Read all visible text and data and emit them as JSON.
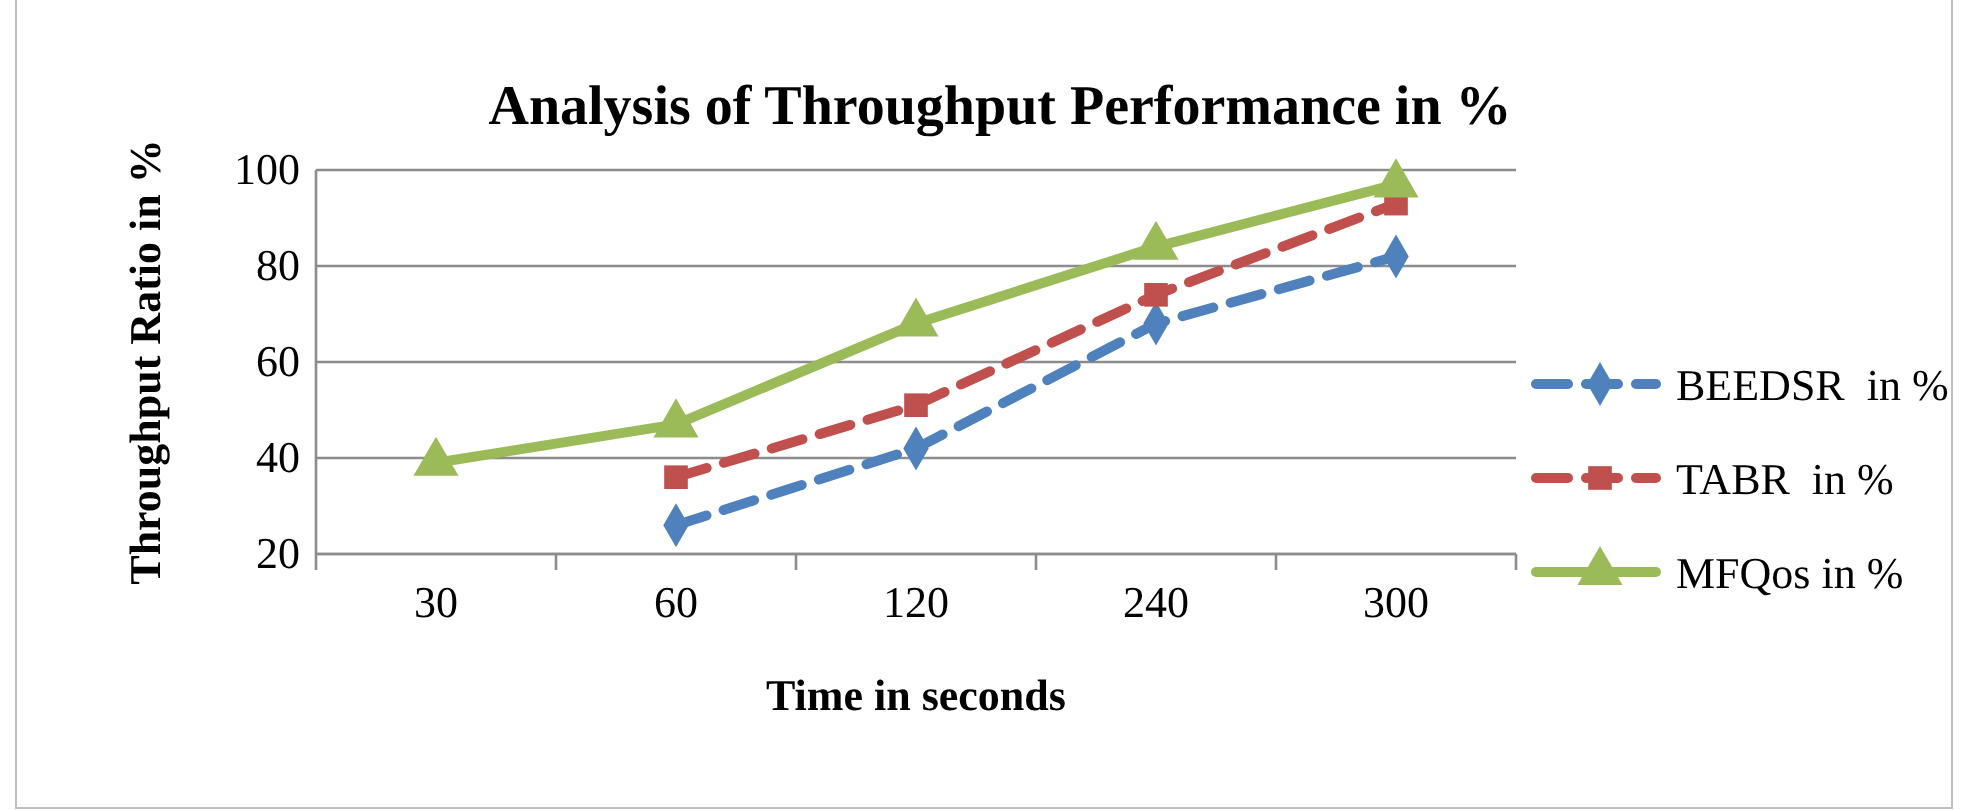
{
  "chart_data": {
    "type": "line",
    "title": "Analysis of Throughput Performance in %",
    "xlabel": "Time in seconds",
    "ylabel": "Throughput Ratio in %",
    "categories": [
      "30",
      "60",
      "120",
      "240",
      "300"
    ],
    "series": [
      {
        "name": "BEEDSR  in %",
        "color": "#4f81bd",
        "values": [
          null,
          26,
          42,
          68,
          82
        ],
        "line_style": "dashed",
        "marker": "diamond"
      },
      {
        "name": "TABR  in %",
        "color": "#c0504d",
        "values": [
          null,
          36,
          51,
          74,
          93
        ],
        "line_style": "dashed",
        "marker": "square"
      },
      {
        "name": "MFQos in %",
        "color": "#9bbb59",
        "values": [
          39,
          47,
          68,
          84,
          97
        ],
        "line_style": "solid",
        "marker": "triangle"
      }
    ],
    "ylim": [
      20,
      100
    ],
    "yticks": [
      20,
      40,
      60,
      80,
      100
    ],
    "grid": "y",
    "legend": "right"
  }
}
